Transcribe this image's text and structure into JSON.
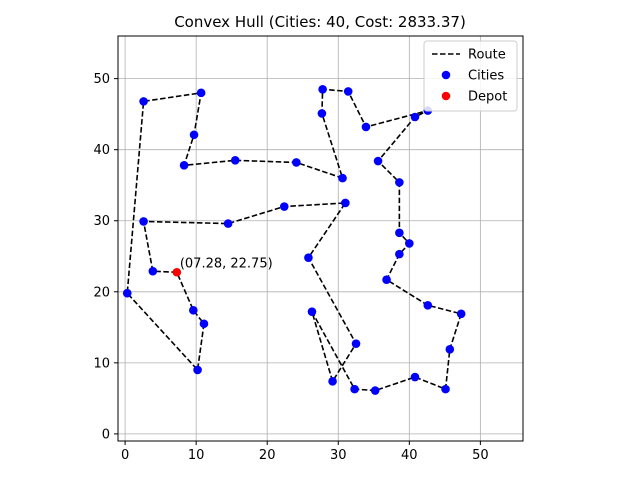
{
  "chart_data": {
    "type": "scatter",
    "title": "Convex Hull (Cities: 40, Cost: 2833.37)",
    "xlabel": "",
    "ylabel": "",
    "xlim": [
      -1,
      56
    ],
    "ylim": [
      -1,
      56
    ],
    "xticks": [
      0,
      10,
      20,
      30,
      40,
      50
    ],
    "yticks": [
      0,
      10,
      20,
      30,
      40,
      50
    ],
    "grid": true,
    "legend_position": "top-right",
    "legend": [
      {
        "label": "Route",
        "kind": "line",
        "color": "#000000"
      },
      {
        "label": "Cities",
        "kind": "marker",
        "color": "#0000ff"
      },
      {
        "label": "Depot",
        "kind": "marker",
        "color": "#ff0000"
      }
    ],
    "depot": {
      "x": 7.28,
      "y": 22.75,
      "label": "(07.28, 22.75)"
    },
    "route": [
      [
        7.28,
        22.75
      ],
      [
        3.9,
        22.9
      ],
      [
        2.6,
        29.9
      ],
      [
        14.5,
        29.6
      ],
      [
        22.4,
        32.0
      ],
      [
        31.0,
        32.5
      ],
      [
        25.8,
        24.8
      ],
      [
        32.5,
        12.7
      ],
      [
        29.2,
        7.4
      ],
      [
        26.3,
        17.2
      ],
      [
        32.3,
        6.3
      ],
      [
        35.2,
        6.1
      ],
      [
        40.8,
        8.0
      ],
      [
        45.1,
        6.3
      ],
      [
        45.7,
        11.9
      ],
      [
        47.3,
        16.9
      ],
      [
        42.6,
        18.1
      ],
      [
        36.8,
        21.7
      ],
      [
        38.6,
        25.3
      ],
      [
        40.0,
        26.8
      ],
      [
        38.6,
        28.3
      ],
      [
        38.6,
        35.4
      ],
      [
        35.6,
        38.4
      ],
      [
        40.8,
        44.6
      ],
      [
        42.6,
        45.5
      ],
      [
        33.9,
        43.2
      ],
      [
        31.4,
        48.2
      ],
      [
        27.8,
        48.5
      ],
      [
        27.7,
        45.1
      ],
      [
        30.6,
        36.0
      ],
      [
        24.1,
        38.2
      ],
      [
        15.5,
        38.5
      ],
      [
        8.3,
        37.8
      ],
      [
        9.7,
        42.1
      ],
      [
        10.7,
        48.0
      ],
      [
        2.6,
        46.8
      ],
      [
        0.3,
        19.8
      ],
      [
        10.2,
        9.0
      ],
      [
        11.1,
        15.5
      ],
      [
        9.6,
        17.4
      ],
      [
        7.28,
        22.75
      ]
    ]
  }
}
